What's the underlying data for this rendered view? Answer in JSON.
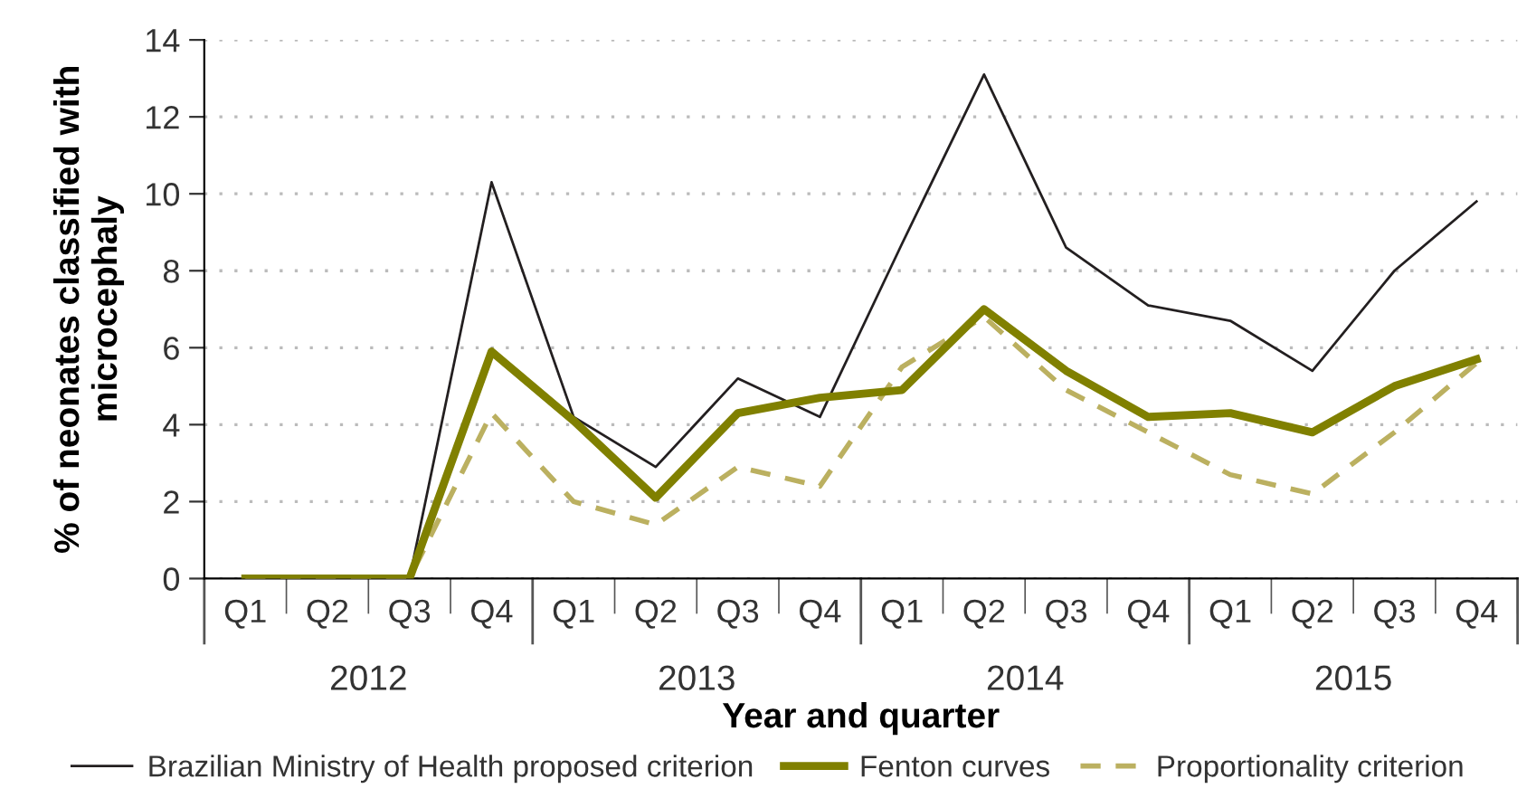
{
  "chart_data": {
    "type": "line",
    "xlabel": "Year and quarter",
    "ylabel": "% of neonates classified with\nmicrocephaly",
    "categories": [
      "Q1",
      "Q2",
      "Q3",
      "Q4",
      "Q1",
      "Q2",
      "Q3",
      "Q4",
      "Q1",
      "Q2",
      "Q3",
      "Q4",
      "Q1",
      "Q2",
      "Q3",
      "Q4"
    ],
    "annotations": [
      "2012",
      "2013",
      "2014",
      "2015"
    ],
    "series": [
      {
        "name": "Brazilian Ministry of Health proposed criterion",
        "color": "#231f20",
        "line_style": "solid",
        "values": [
          0,
          0,
          0,
          10.3,
          4.2,
          2.9,
          5.2,
          4.2,
          8.7,
          13.1,
          8.6,
          7.1,
          6.7,
          5.4,
          8.0,
          9.8
        ]
      },
      {
        "name": "Fenton curves",
        "color": "#808000",
        "line_style": "solid",
        "values": [
          0,
          0,
          0,
          5.9,
          4.1,
          2.1,
          4.3,
          4.7,
          4.9,
          7.0,
          5.4,
          4.2,
          4.3,
          3.8,
          5.0,
          5.7
        ]
      },
      {
        "name": "Proportionality criterion",
        "color": "#bbb060",
        "line_style": "dashed",
        "values": [
          0,
          0,
          0,
          4.3,
          2.0,
          1.4,
          2.9,
          2.4,
          5.5,
          6.8,
          4.9,
          3.8,
          2.7,
          2.2,
          3.8,
          5.6
        ]
      }
    ],
    "ylim": [
      0,
      14
    ],
    "yticks": [
      0,
      2,
      4,
      6,
      8,
      10,
      12,
      14
    ],
    "grid": "y",
    "legend": "bottom",
    "marker": "none"
  }
}
